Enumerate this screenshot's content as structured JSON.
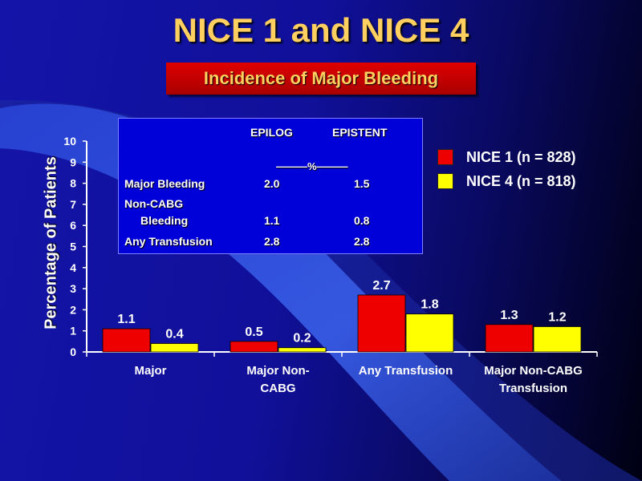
{
  "slide": {
    "title": "NICE 1 and NICE 4",
    "subtitle": "Incidence of Major Bleeding"
  },
  "colors": {
    "nice1": "#ee0000",
    "nice4": "#ffff00",
    "title": "#ffd060",
    "subtitle_box": "#cc0000"
  },
  "chart_data": {
    "type": "bar",
    "categories": [
      "Major",
      "Major Non-CABG",
      "Any Transfusion",
      "Major Non-CABG Transfusion"
    ],
    "category_lines": [
      [
        "Major"
      ],
      [
        "Major Non-",
        "CABG"
      ],
      [
        "Any Transfusion"
      ],
      [
        "Major Non-CABG",
        "Transfusion"
      ]
    ],
    "series": [
      {
        "name": "NICE 1 (n = 828)",
        "values": [
          1.1,
          0.5,
          2.7,
          1.3
        ]
      },
      {
        "name": "NICE 4 (n = 818)",
        "values": [
          0.4,
          0.2,
          1.8,
          1.2
        ]
      }
    ],
    "data_labels": [
      [
        "1.1",
        "0.5",
        "2.7",
        "1.3"
      ],
      [
        "0.4",
        "0.2",
        "1.8",
        "1.2"
      ]
    ],
    "ylabel": "Percentage of Patients",
    "xlabel": "",
    "ylim": [
      0,
      10
    ],
    "yticks": [
      "0",
      "1",
      "2",
      "3",
      "4",
      "5",
      "6",
      "7",
      "8",
      "9",
      "10"
    ],
    "legend_position": "top-right",
    "grid": false
  },
  "inset_table": {
    "headers": [
      "EPILOG",
      "EPISTENT"
    ],
    "unit": "———%———",
    "rows": [
      {
        "label": "Major Bleeding",
        "label2": "",
        "epilog": "2.0",
        "epistent": "1.5"
      },
      {
        "label": "Non-CABG",
        "label2": "Bleeding",
        "epilog": "1.1",
        "epistent": "0.8"
      },
      {
        "label": "Any Transfusion",
        "label2": "",
        "epilog": "2.8",
        "epistent": "2.8"
      }
    ]
  }
}
